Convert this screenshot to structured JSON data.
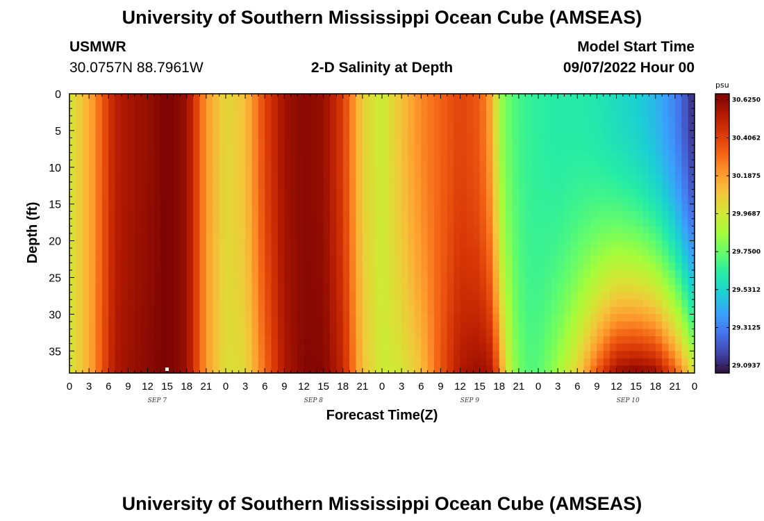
{
  "header": {
    "title": "University of Southern Mississippi Ocean Cube (AMSEAS)",
    "station": "USMWR",
    "coords": "30.0757N  88.7961W",
    "subtitle": "2-D Salinity at Depth",
    "start_label": "Model Start Time",
    "start_value": "09/07/2022 Hour 00"
  },
  "footer": {
    "title": "University of Southern Mississippi Ocean Cube (AMSEAS)"
  },
  "chart_data": {
    "type": "heatmap",
    "title": "2-D Salinity at Depth",
    "xlabel": "Forecast Time(Z)",
    "ylabel": "Depth (ft)",
    "x_range_hours": [
      0,
      96
    ],
    "ylim": [
      0,
      38
    ],
    "y_ticks": [
      0,
      5,
      10,
      15,
      20,
      25,
      30,
      35
    ],
    "x_tick_labels": [
      "0",
      "3",
      "6",
      "9",
      "12",
      "15",
      "18",
      "21",
      "0",
      "3",
      "6",
      "9",
      "12",
      "15",
      "18",
      "21",
      "0",
      "3",
      "6",
      "9",
      "12",
      "15",
      "18",
      "21",
      "0",
      "3",
      "6",
      "9",
      "12",
      "15",
      "18",
      "21",
      "0"
    ],
    "day_labels": [
      "SEP 7",
      "SEP 8",
      "SEP 9",
      "SEP 10"
    ],
    "colorbar": {
      "units": "psu",
      "labels": [
        "30.6250",
        "30.4062",
        "30.1875",
        "29.9687",
        "29.7500",
        "29.5312",
        "29.3125",
        "29.0937"
      ],
      "values": [
        30.625,
        30.40625,
        30.1875,
        29.96875,
        29.75,
        29.53125,
        29.3125,
        29.09375
      ],
      "min": 29.05,
      "max": 30.66,
      "colors": [
        "#30123b",
        "#4145ab",
        "#4675ed",
        "#39a2fc",
        "#1bcfd4",
        "#24eca6",
        "#61fc6c",
        "#a4fc3b",
        "#d1e834",
        "#f3c63a",
        "#fe9b2d",
        "#f36315",
        "#d93806",
        "#b11901",
        "#7a0402"
      ]
    },
    "series_description": "salinity(psu) by forecast hour (x) and depth in ft (y)",
    "profile_hours": [
      0,
      3,
      7,
      10,
      12,
      15,
      18,
      21,
      24,
      27,
      30,
      33,
      36,
      39,
      42,
      45,
      48,
      51,
      54,
      57,
      60,
      63,
      65,
      66,
      68,
      70,
      72,
      75,
      78,
      81,
      84,
      87,
      90,
      93,
      96
    ],
    "surface_salinity": [
      29.98,
      30.15,
      30.52,
      30.58,
      30.6,
      30.66,
      30.6,
      30.2,
      30.02,
      30.1,
      30.4,
      30.58,
      30.63,
      30.6,
      30.42,
      30.05,
      29.95,
      30.1,
      30.24,
      30.32,
      30.4,
      30.34,
      30.15,
      29.85,
      29.72,
      29.66,
      29.64,
      29.62,
      29.62,
      29.6,
      29.56,
      29.52,
      29.45,
      29.32,
      29.1
    ],
    "bottom_salinity": [
      29.98,
      30.15,
      30.55,
      30.6,
      30.63,
      30.66,
      30.6,
      30.2,
      30.0,
      30.02,
      30.3,
      30.55,
      30.64,
      30.64,
      30.5,
      30.1,
      29.95,
      29.98,
      30.1,
      30.35,
      30.55,
      30.6,
      30.55,
      30.25,
      29.85,
      29.72,
      29.72,
      29.85,
      30.05,
      30.35,
      30.6,
      30.64,
      30.6,
      30.35,
      29.98
    ]
  }
}
